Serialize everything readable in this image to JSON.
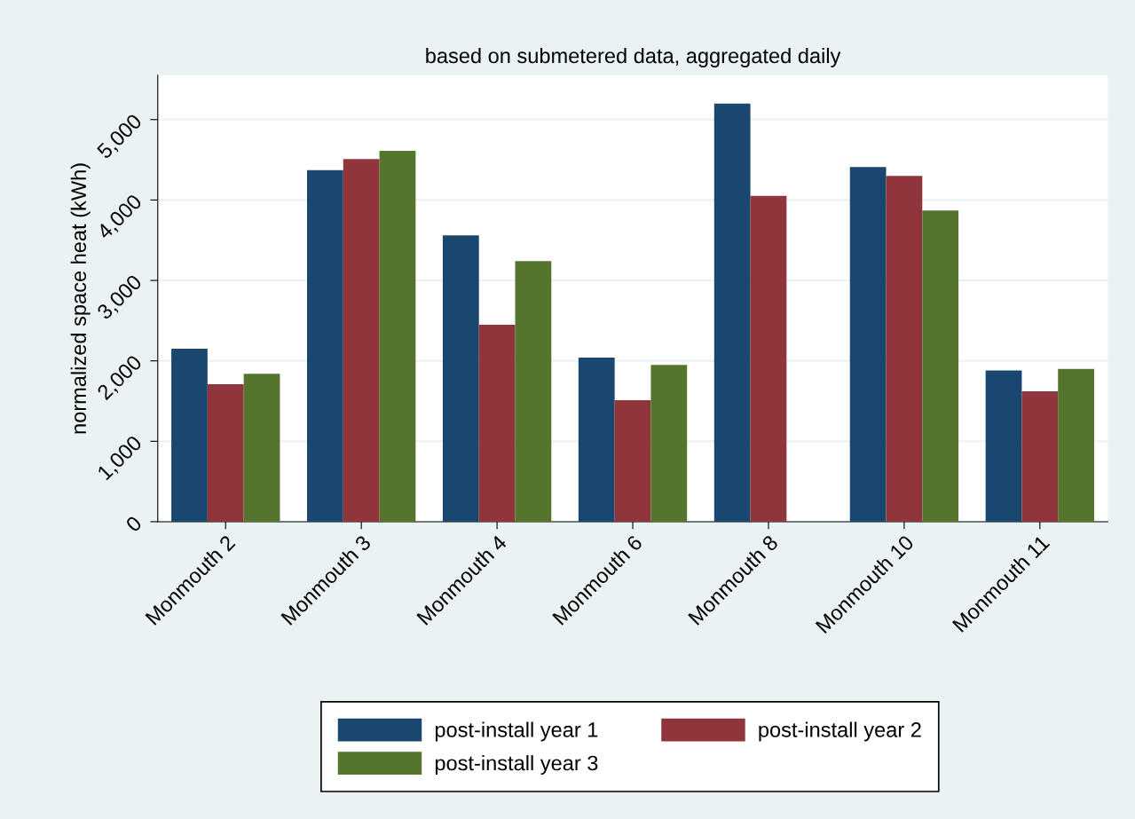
{
  "chart_data": {
    "type": "bar",
    "title": "based on submetered data, aggregated daily",
    "ylabel": "normalized space heat (kWh)",
    "categories": [
      "Monmouth 2",
      "Monmouth 3",
      "Monmouth 4",
      "Monmouth 6",
      "Monmouth 8",
      "Monmouth 10",
      "Monmouth 11"
    ],
    "series": [
      {
        "name": "post-install year 1",
        "color": "#1a476f",
        "values": [
          2150,
          4370,
          3560,
          2040,
          5200,
          4410,
          1880
        ]
      },
      {
        "name": "post-install year 2",
        "color": "#90353b",
        "values": [
          1710,
          4510,
          2450,
          1510,
          4050,
          4300,
          1620
        ]
      },
      {
        "name": "post-install year 3",
        "color": "#55752f",
        "values": [
          1840,
          4610,
          3240,
          1950,
          null,
          3870,
          1900
        ]
      }
    ],
    "ylim": [
      0,
      5550
    ],
    "yticks": [
      0,
      {
        "value": 1000,
        "label": "1,000"
      },
      {
        "value": 2000,
        "label": "2,000"
      },
      {
        "value": 3000,
        "label": "3,000"
      },
      {
        "value": 4000,
        "label": "4,000"
      },
      {
        "value": 5000,
        "label": "5,000"
      }
    ],
    "grid": "y",
    "legend": "bottom"
  }
}
